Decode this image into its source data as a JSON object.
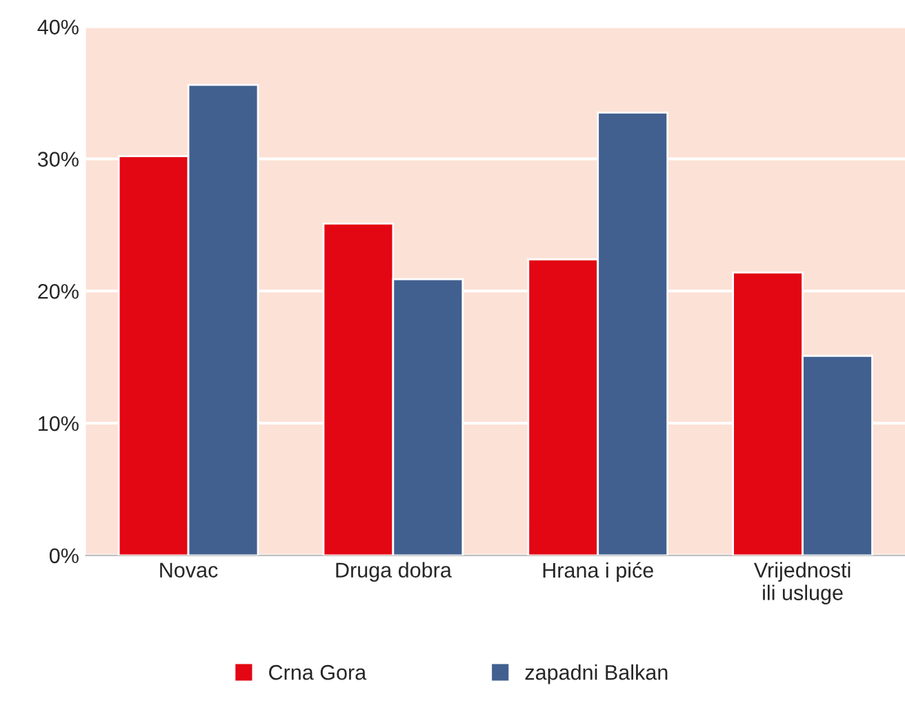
{
  "chart_data": {
    "type": "bar",
    "categories": [
      "Novac",
      "Druga dobra",
      "Hrana i piće",
      "Vrijednosti ili usluge"
    ],
    "series": [
      {
        "name": "Crna Gora",
        "color": "#e30613",
        "values": [
          30.2,
          25.1,
          22.4,
          21.4
        ]
      },
      {
        "name": "zapadni Balkan",
        "color": "#41608f",
        "values": [
          35.6,
          20.9,
          33.5,
          15.1
        ]
      }
    ],
    "ylim": [
      0,
      40
    ],
    "yticks": [
      {
        "value": 0,
        "label": "0%"
      },
      {
        "value": 10,
        "label": "10%"
      },
      {
        "value": 20,
        "label": "20%"
      },
      {
        "value": 30,
        "label": "30%"
      },
      {
        "value": 40,
        "label": "40%"
      }
    ],
    "grid": "y",
    "legend": "bottom"
  }
}
